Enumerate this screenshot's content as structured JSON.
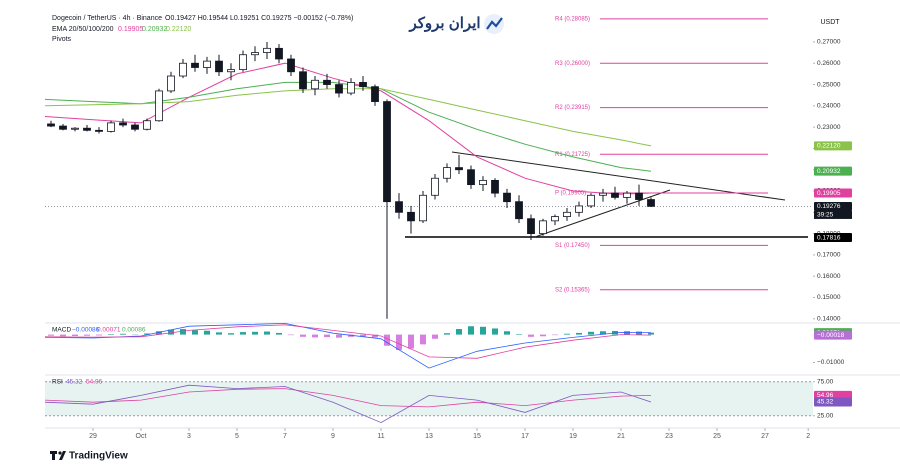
{
  "logo_text": "ایران بروکر",
  "footer": "TradingView",
  "chart_data": {
    "type": "candlestick",
    "title": "Dogecoin / TetherUS · 4h · Binance",
    "ohlc_header": "O0.19427 H0.19544 L0.19251 C0.19275 −0.00152 (−0.78%)",
    "ema_label": "EMA 20/50/100/200",
    "pivots_label": "Pivots",
    "currency": "USDT",
    "up_color": "#ffffff",
    "down_color": "#131722",
    "x": [
      0.25,
      0.75,
      1.25,
      1.75,
      2.25,
      2.75,
      3.25,
      3.75,
      4.25,
      4.75,
      5.25,
      5.75,
      6.25,
      6.75,
      7.25,
      7.75,
      8.25,
      8.75,
      9.25,
      9.75,
      10.25,
      10.75,
      11.25,
      11.75,
      12.25,
      12.75,
      13.25,
      13.75,
      14.25,
      14.75,
      15.25,
      15.75,
      16.25,
      16.75,
      17.25,
      17.75,
      18.25,
      18.75,
      19.25,
      19.75,
      20.25,
      20.75,
      21.25,
      21.75,
      22.25,
      22.75,
      23.25,
      23.75,
      24.25,
      24.75,
      25.25
    ],
    "open": [
      0.2315,
      0.2305,
      0.229,
      0.2295,
      0.2285,
      0.228,
      0.232,
      0.231,
      0.229,
      0.233,
      0.247,
      0.254,
      0.26,
      0.258,
      0.261,
      0.256,
      0.257,
      0.264,
      0.265,
      0.267,
      0.262,
      0.256,
      0.248,
      0.252,
      0.25,
      0.246,
      0.251,
      0.249,
      0.242,
      0.195,
      0.19,
      0.186,
      0.198,
      0.206,
      0.211,
      0.21,
      0.203,
      0.205,
      0.199,
      0.195,
      0.187,
      0.18,
      0.186,
      0.188,
      0.19,
      0.193,
      0.198,
      0.199,
      0.197,
      0.199,
      0.196
    ],
    "high": [
      0.233,
      0.2315,
      0.23,
      0.231,
      0.23,
      0.233,
      0.234,
      0.232,
      0.234,
      0.248,
      0.256,
      0.262,
      0.264,
      0.263,
      0.264,
      0.26,
      0.266,
      0.268,
      0.27,
      0.269,
      0.264,
      0.258,
      0.254,
      0.255,
      0.252,
      0.253,
      0.254,
      0.25,
      0.243,
      0.199,
      0.193,
      0.2,
      0.208,
      0.213,
      0.217,
      0.212,
      0.207,
      0.206,
      0.201,
      0.198,
      0.189,
      0.187,
      0.189,
      0.192,
      0.195,
      0.199,
      0.201,
      0.202,
      0.2,
      0.203,
      0.197
    ],
    "low": [
      0.23,
      0.2285,
      0.228,
      0.228,
      0.227,
      0.2275,
      0.23,
      0.228,
      0.2285,
      0.2325,
      0.246,
      0.253,
      0.256,
      0.255,
      0.254,
      0.252,
      0.256,
      0.261,
      0.262,
      0.26,
      0.254,
      0.246,
      0.245,
      0.248,
      0.244,
      0.245,
      0.247,
      0.24,
      0.14,
      0.187,
      0.18,
      0.185,
      0.196,
      0.204,
      0.208,
      0.201,
      0.2,
      0.197,
      0.192,
      0.185,
      0.177,
      0.179,
      0.184,
      0.186,
      0.188,
      0.192,
      0.195,
      0.196,
      0.194,
      0.193,
      0.1925
    ],
    "close": [
      0.2305,
      0.229,
      0.2295,
      0.2285,
      0.228,
      0.232,
      0.231,
      0.229,
      0.233,
      0.247,
      0.254,
      0.26,
      0.258,
      0.261,
      0.256,
      0.257,
      0.264,
      0.265,
      0.267,
      0.262,
      0.256,
      0.248,
      0.252,
      0.25,
      0.246,
      0.251,
      0.249,
      0.242,
      0.195,
      0.19,
      0.186,
      0.198,
      0.206,
      0.211,
      0.21,
      0.203,
      0.205,
      0.199,
      0.195,
      0.187,
      0.18,
      0.186,
      0.188,
      0.19,
      0.193,
      0.198,
      0.199,
      0.197,
      0.199,
      0.196,
      0.1928
    ],
    "xlim": [
      0,
      32
    ],
    "xticks": [
      {
        "value": 2,
        "label": "29"
      },
      {
        "value": 4,
        "label": "Oct"
      },
      {
        "value": 6,
        "label": "3"
      },
      {
        "value": 8,
        "label": "5"
      },
      {
        "value": 10,
        "label": "7"
      },
      {
        "value": 12,
        "label": "9"
      },
      {
        "value": 14,
        "label": "11"
      },
      {
        "value": 16,
        "label": "13"
      },
      {
        "value": 18,
        "label": "15"
      },
      {
        "value": 20,
        "label": "17"
      },
      {
        "value": 22,
        "label": "19"
      },
      {
        "value": 24,
        "label": "21"
      },
      {
        "value": 26,
        "label": "23"
      },
      {
        "value": 28,
        "label": "25"
      },
      {
        "value": 30,
        "label": "27"
      },
      {
        "value": 31.8,
        "label": "2"
      }
    ],
    "ylim": [
      0.1385,
      0.285
    ],
    "yticks": [
      {
        "value": 0.27,
        "label": "0.27000"
      },
      {
        "value": 0.26,
        "label": "0.26000"
      },
      {
        "value": 0.25,
        "label": "0.25000"
      },
      {
        "value": 0.24,
        "label": "0.24000"
      },
      {
        "value": 0.23,
        "label": "0.23000"
      },
      {
        "value": 0.22,
        "label": "0.22000"
      },
      {
        "value": 0.21,
        "label": "0.21000"
      },
      {
        "value": 0.2,
        "label": "0.20000"
      },
      {
        "value": 0.19,
        "label": "0.19000"
      },
      {
        "value": 0.18,
        "label": "0.18000"
      },
      {
        "value": 0.17,
        "label": "0.17000"
      },
      {
        "value": 0.16,
        "label": "0.16000"
      },
      {
        "value": 0.15,
        "label": "0.15000"
      },
      {
        "value": 0.14,
        "label": "0.14000"
      }
    ],
    "ema_x": [
      0,
      2,
      4,
      6,
      8,
      10,
      12,
      14,
      16,
      18,
      20,
      22,
      24,
      25.25
    ],
    "ema": [
      {
        "value_label": "0.19905",
        "color": "#e040a0",
        "values": [
          0.235,
          0.2335,
          0.232,
          0.244,
          0.255,
          0.26,
          0.253,
          0.247,
          0.233,
          0.216,
          0.206,
          0.2,
          0.1985,
          0.19905
        ]
      },
      {
        "value_label": "0.20932",
        "color": "#4caf50",
        "values": [
          0.243,
          0.242,
          0.241,
          0.244,
          0.248,
          0.251,
          0.251,
          0.248,
          0.237,
          0.229,
          0.222,
          0.216,
          0.211,
          0.20932
        ]
      },
      {
        "value_label": "0.22120",
        "color": "#8bc34a",
        "values": [
          0.24,
          0.2405,
          0.241,
          0.242,
          0.245,
          0.247,
          0.248,
          0.248,
          0.243,
          0.238,
          0.233,
          0.228,
          0.224,
          0.2212
        ]
      }
    ],
    "pivots": [
      {
        "label": "R4 (0.28085)",
        "value": 0.28085
      },
      {
        "label": "R3 (0.26000)",
        "value": 0.26
      },
      {
        "label": "R2 (0.23915)",
        "value": 0.23915
      },
      {
        "label": "R1 (0.21725)",
        "value": 0.21725
      },
      {
        "label": "P (0.19905)",
        "value": 0.19905
      },
      {
        "label": "S1 (0.17450)",
        "value": 0.1745
      },
      {
        "label": "S2 (0.15365)",
        "value": 0.15365
      }
    ],
    "pivot_color": "#e040a0",
    "price_tags": [
      {
        "value": 0.2212,
        "label": "0.22120",
        "color": "#8bc34a"
      },
      {
        "value": 0.20932,
        "label": "0.20932",
        "color": "#4caf50"
      },
      {
        "value": 0.19905,
        "label": "0.19905",
        "color": "#e040a0"
      },
      {
        "value": 0.19276,
        "label": "0.19276",
        "color": "#131722"
      },
      {
        "value": 0.17816,
        "label": "0.17816",
        "color": "#000000"
      }
    ],
    "countdown": "39:25",
    "macd": {
      "label": "MACD",
      "header_values": [
        "−0.00086",
        "0.00071",
        "0.00086"
      ],
      "ylim": [
        -0.0134,
        0.0038
      ],
      "yticks": [
        {
          "value": -0.01,
          "label": "−0.01000"
        }
      ],
      "histogram": [
        -0.0004,
        -0.0006,
        -0.0005,
        -0.0004,
        -0.0003,
        0.0002,
        0.0003,
        0.0001,
        0.0004,
        0.0012,
        0.0018,
        0.002,
        0.0016,
        0.0014,
        0.0008,
        0.0005,
        0.0009,
        0.001,
        0.0011,
        0.0006,
        -0.0002,
        -0.0008,
        -0.001,
        -0.0009,
        -0.0011,
        -0.0008,
        -0.0007,
        -0.001,
        -0.004,
        -0.0055,
        -0.005,
        -0.0035,
        -0.0015,
        0.0005,
        0.002,
        0.003,
        0.0028,
        0.0022,
        0.0012,
        0.0002,
        -0.0008,
        -0.0006,
        -0.0002,
        0.0003,
        0.0006,
        0.001,
        0.0012,
        0.0013,
        0.0012,
        0.0011,
        0.0007
      ],
      "line": {
        "color": "#2962ff",
        "values": [
          -0.001,
          -0.0012,
          -0.0005,
          0.003,
          0.0035,
          0.004,
          0.0005,
          -0.0015,
          -0.012,
          -0.006,
          -0.003,
          -0.001,
          0.0008,
          0.00071
        ]
      },
      "signal": {
        "color": "#e040a0",
        "values": [
          -0.0008,
          -0.0009,
          -0.0008,
          0.0015,
          0.0028,
          0.0035,
          0.0015,
          -0.0005,
          -0.008,
          -0.0085,
          -0.0045,
          -0.002,
          0.0,
          -0.00018
        ]
      },
      "tags": [
        {
          "value": 0.00071,
          "label": "0.00071",
          "color": "#4caf50"
        },
        {
          "value": -0.00018,
          "label": "−0.00018",
          "color": "#b76fd6"
        }
      ]
    },
    "rsi": {
      "label": "RSI",
      "header_values": [
        "45.32",
        "54.96"
      ],
      "ylim": [
        10,
        82
      ],
      "yticks": [
        {
          "value": 75,
          "label": "75.00"
        },
        {
          "value": 25,
          "label": "25.00"
        }
      ],
      "line": {
        "color": "#7e57c2",
        "values": [
          45,
          42,
          55,
          70,
          65,
          68,
          45,
          15,
          55,
          48,
          30,
          55,
          60,
          45.32
        ]
      },
      "ma": {
        "color": "#e040a0",
        "values": [
          48,
          45,
          48,
          60,
          64,
          65,
          55,
          40,
          38,
          45,
          40,
          48,
          54,
          54.96
        ]
      },
      "tags": [
        {
          "value": 54.96,
          "label": "54.96",
          "color": "#e040a0"
        },
        {
          "value": 45.32,
          "label": "45.32",
          "color": "#7e57c2"
        }
      ]
    }
  }
}
